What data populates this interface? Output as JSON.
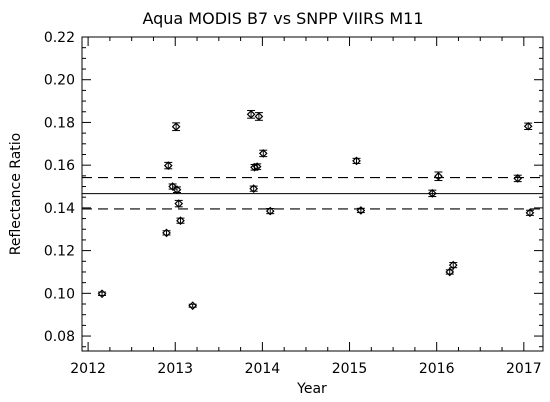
{
  "chart_data": {
    "type": "scatter",
    "title": "Aqua MODIS B7 vs SNPP VIIRS M11",
    "xlabel": "Year",
    "ylabel": "Reflectance Ratio",
    "xlim": [
      2011.93,
      2017.22
    ],
    "ylim": [
      0.073,
      0.22
    ],
    "xticks": [
      2012,
      2013,
      2014,
      2015,
      2016,
      2017
    ],
    "xtick_labels": [
      "2012",
      "2013",
      "2014",
      "2015",
      "2016",
      "2017"
    ],
    "yticks": [
      0.08,
      0.1,
      0.12,
      0.14,
      0.16,
      0.18,
      0.2,
      0.22
    ],
    "ytick_labels": [
      "0.08",
      "0.10",
      "0.12",
      "0.14",
      "0.16",
      "0.18",
      "0.20",
      "0.22"
    ],
    "grid": false,
    "mean": 0.1467,
    "band_upper": 0.1542,
    "band_lower": 0.1395,
    "series": [
      {
        "marker": "diamond with error bar",
        "points": [
          {
            "x": 2012.16,
            "y": 0.0998,
            "err": 0.0008
          },
          {
            "x": 2012.9,
            "y": 0.1283,
            "err": 0.001
          },
          {
            "x": 2012.92,
            "y": 0.1598,
            "err": 0.0015
          },
          {
            "x": 2012.97,
            "y": 0.15,
            "err": 0.0012
          },
          {
            "x": 2013.01,
            "y": 0.178,
            "err": 0.0018
          },
          {
            "x": 2013.02,
            "y": 0.1485,
            "err": 0.0013
          },
          {
            "x": 2013.04,
            "y": 0.142,
            "err": 0.0015
          },
          {
            "x": 2013.06,
            "y": 0.134,
            "err": 0.0012
          },
          {
            "x": 2013.2,
            "y": 0.0942,
            "err": 0.0007
          },
          {
            "x": 2013.87,
            "y": 0.1838,
            "err": 0.0018
          },
          {
            "x": 2013.9,
            "y": 0.149,
            "err": 0.0012
          },
          {
            "x": 2013.91,
            "y": 0.159,
            "err": 0.0013
          },
          {
            "x": 2013.94,
            "y": 0.1593,
            "err": 0.0013
          },
          {
            "x": 2013.96,
            "y": 0.1828,
            "err": 0.0018
          },
          {
            "x": 2014.01,
            "y": 0.1655,
            "err": 0.0015
          },
          {
            "x": 2014.09,
            "y": 0.1385,
            "err": 0.0012
          },
          {
            "x": 2015.08,
            "y": 0.162,
            "err": 0.0012
          },
          {
            "x": 2015.13,
            "y": 0.1388,
            "err": 0.001
          },
          {
            "x": 2015.95,
            "y": 0.1468,
            "err": 0.0015
          },
          {
            "x": 2016.02,
            "y": 0.1548,
            "err": 0.002
          },
          {
            "x": 2016.15,
            "y": 0.11,
            "err": 0.001
          },
          {
            "x": 2016.19,
            "y": 0.1132,
            "err": 0.0012
          },
          {
            "x": 2016.93,
            "y": 0.1538,
            "err": 0.0015
          },
          {
            "x": 2017.05,
            "y": 0.1782,
            "err": 0.0015
          },
          {
            "x": 2017.07,
            "y": 0.1377,
            "err": 0.0012
          }
        ]
      }
    ]
  }
}
